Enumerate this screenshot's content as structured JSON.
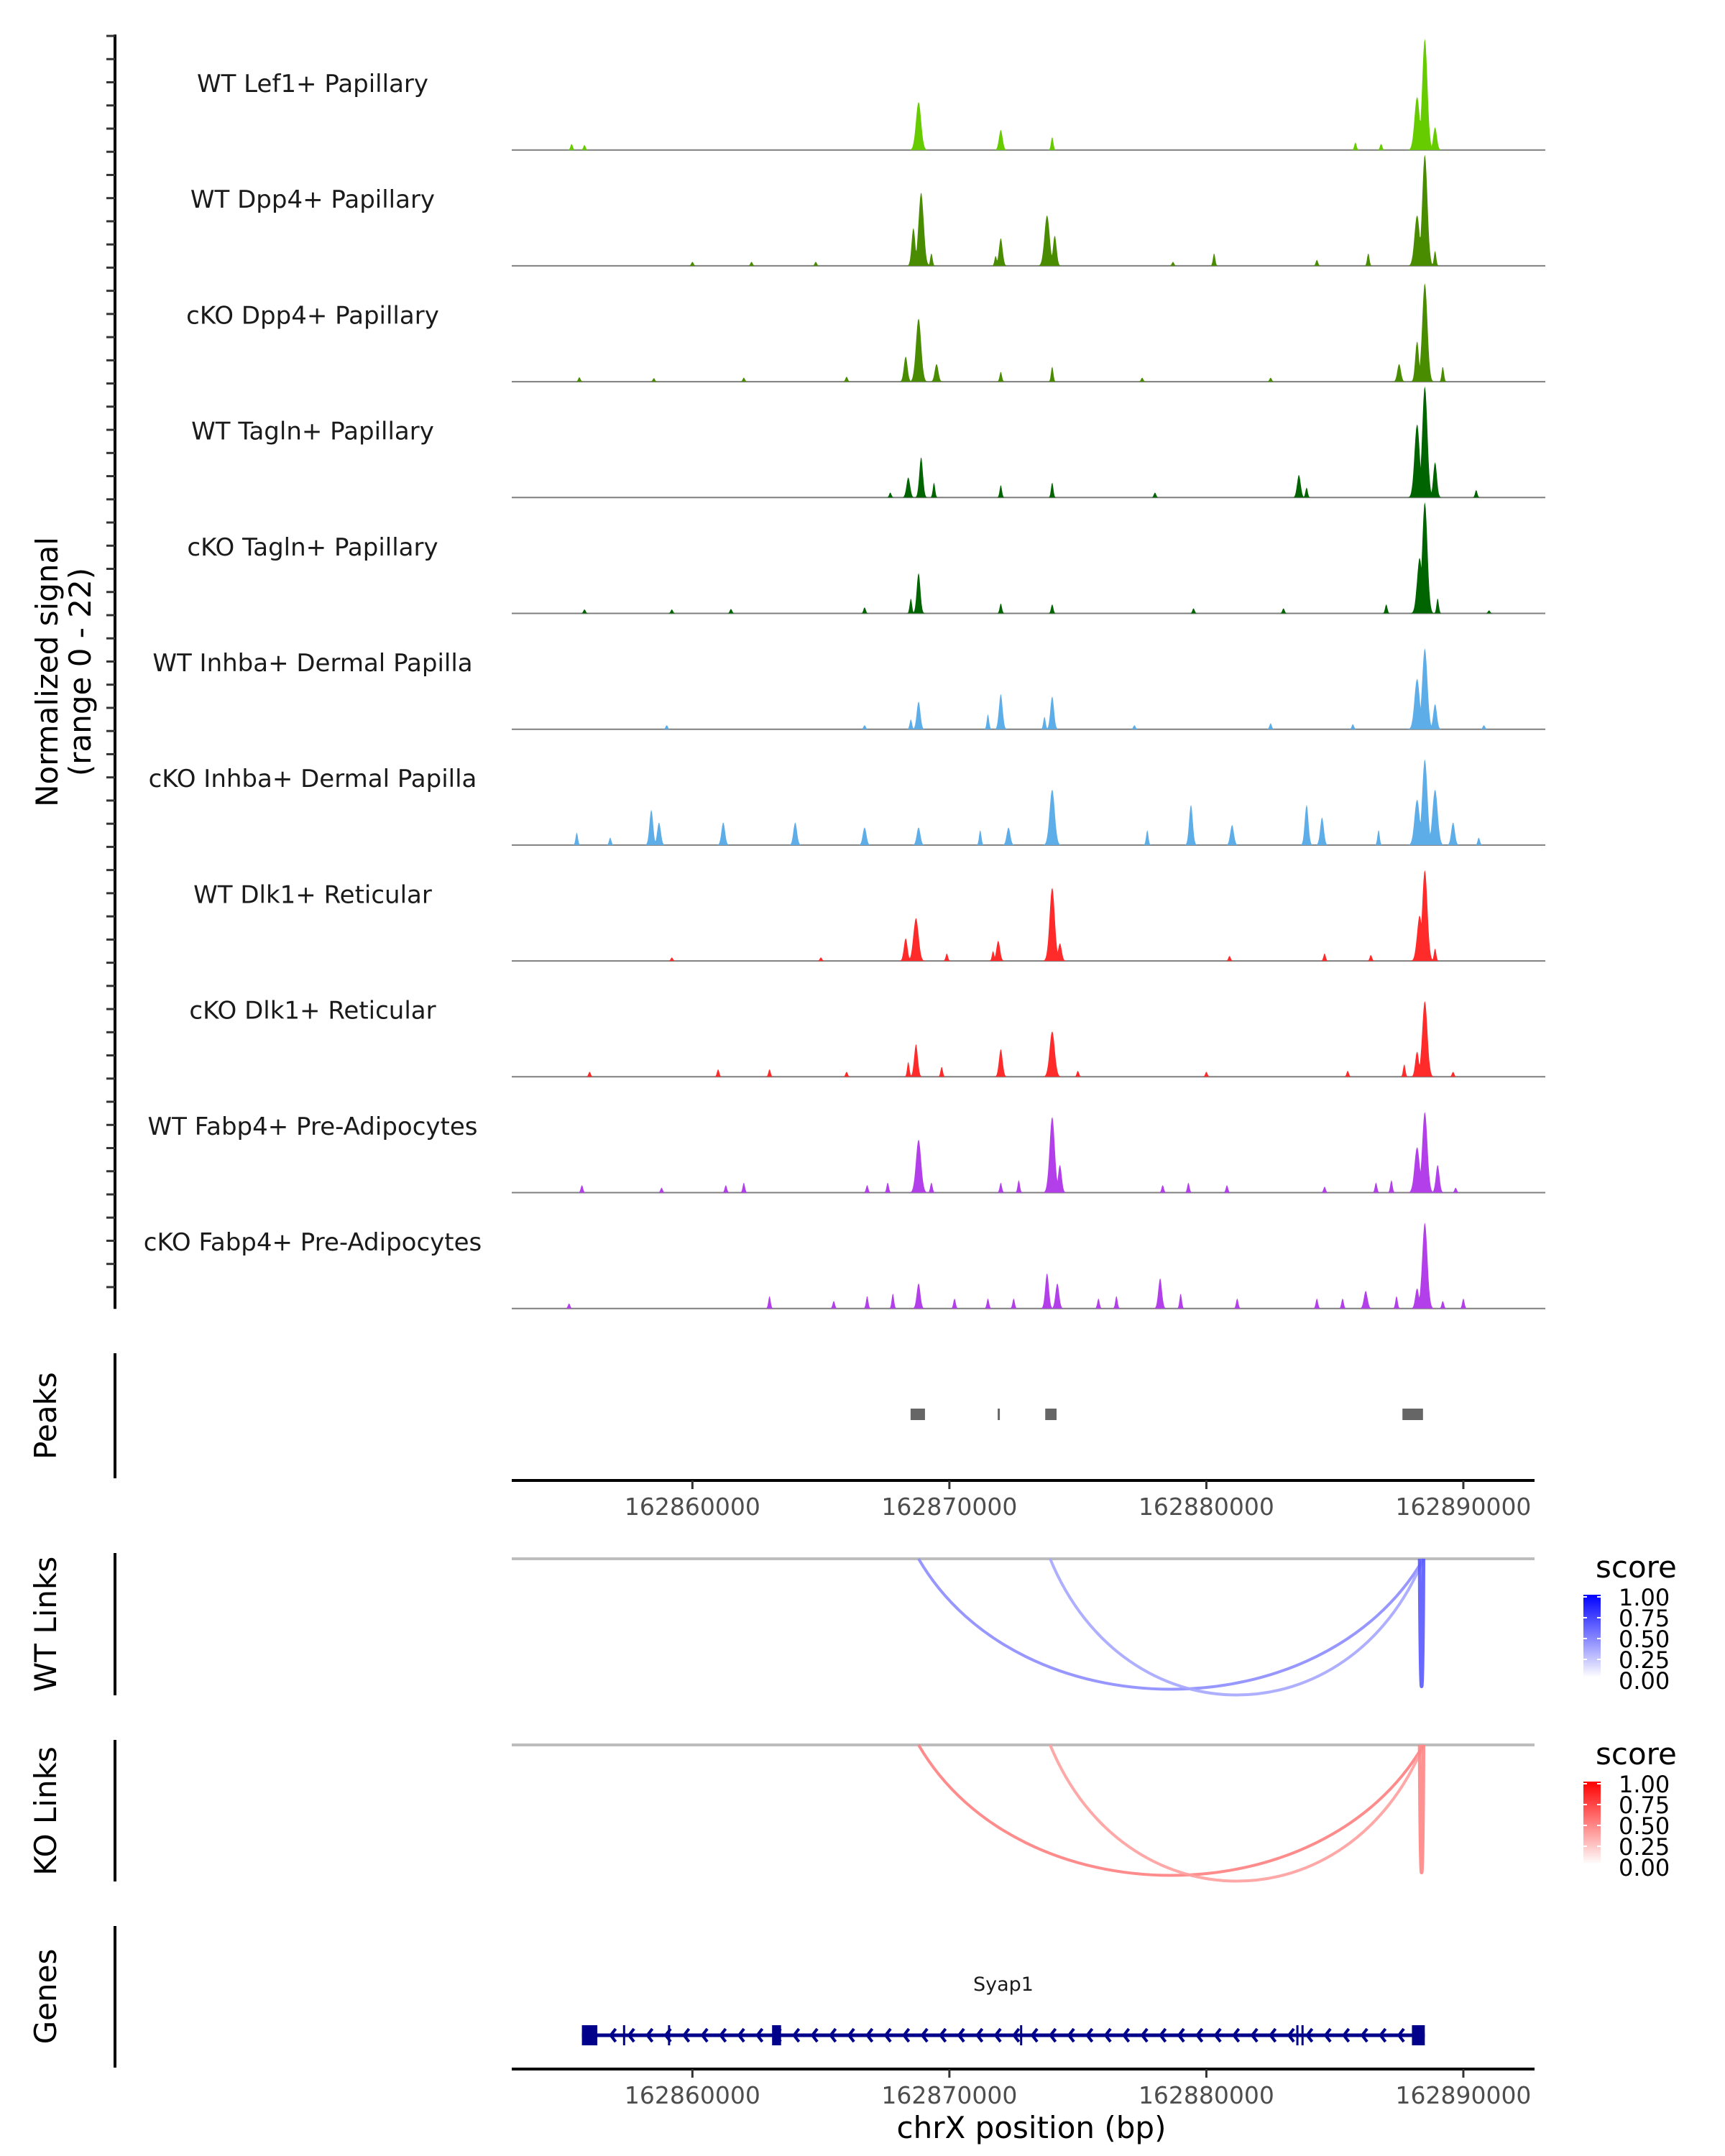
{
  "chart_data": {
    "type": "area",
    "title": "",
    "ylabel_signal": "Normalized signal\n(range 0 - 22)",
    "ylabel_lines": [
      "Normalized signal",
      "(range 0 - 22)"
    ],
    "signal_range": [
      0,
      22
    ],
    "xlabel": "chrX position (bp)",
    "xlim": [
      162852970,
      162892770
    ],
    "xticks": [
      162860000,
      162870000,
      162880000,
      162890000
    ],
    "xtick_labels": [
      "162860000",
      "162870000",
      "162880000",
      "162890000"
    ],
    "tracks": [
      {
        "name": "WT Lef1+ Papillary",
        "color": "#66CC00",
        "peaks": [
          [
            162855300,
            1.2
          ],
          [
            162855800,
            1.0
          ],
          [
            162868800,
            9.5
          ],
          [
            162872000,
            4.0
          ],
          [
            162874000,
            2.6
          ],
          [
            162888500,
            22.0
          ],
          [
            162888200,
            10.5
          ],
          [
            162888900,
            4.5
          ],
          [
            162885800,
            1.5
          ],
          [
            162886800,
            1.2
          ]
        ]
      },
      {
        "name": "WT Dpp4+ Papillary",
        "color": "#4A8C00",
        "peaks": [
          [
            162860000,
            0.8
          ],
          [
            162862300,
            0.8
          ],
          [
            162864800,
            0.8
          ],
          [
            162868900,
            14.5
          ],
          [
            162868600,
            7.5
          ],
          [
            162869300,
            2.5
          ],
          [
            162872000,
            5.5
          ],
          [
            162871800,
            2.0
          ],
          [
            162873800,
            10.0
          ],
          [
            162874100,
            6.0
          ],
          [
            162878700,
            0.8
          ],
          [
            162880300,
            2.5
          ],
          [
            162884300,
            1.2
          ],
          [
            162886300,
            2.5
          ],
          [
            162888200,
            10.0
          ],
          [
            162888500,
            22.0
          ],
          [
            162888900,
            3.0
          ]
        ]
      },
      {
        "name": "cKO Dpp4+ Papillary",
        "color": "#4A8C00",
        "peaks": [
          [
            162855600,
            0.9
          ],
          [
            162858500,
            0.7
          ],
          [
            162862000,
            0.8
          ],
          [
            162866000,
            1.0
          ],
          [
            162868800,
            12.5
          ],
          [
            162868300,
            5.0
          ],
          [
            162869500,
            3.5
          ],
          [
            162872000,
            2.0
          ],
          [
            162874000,
            3.0
          ],
          [
            162877500,
            0.8
          ],
          [
            162882500,
            0.8
          ],
          [
            162887500,
            3.5
          ],
          [
            162888500,
            19.5
          ],
          [
            162888200,
            8.0
          ],
          [
            162889200,
            3.0
          ]
        ]
      },
      {
        "name": "WT Tagln+ Papillary",
        "color": "#006400",
        "peaks": [
          [
            162867700,
            1.0
          ],
          [
            162868400,
            4.0
          ],
          [
            162868900,
            8.0
          ],
          [
            162869400,
            3.0
          ],
          [
            162872000,
            2.5
          ],
          [
            162874000,
            3.0
          ],
          [
            162878000,
            1.0
          ],
          [
            162883600,
            4.5
          ],
          [
            162883900,
            2.0
          ],
          [
            162888200,
            14.5
          ],
          [
            162888500,
            22.0
          ],
          [
            162888900,
            7.0
          ],
          [
            162890500,
            1.5
          ]
        ]
      },
      {
        "name": "cKO Tagln+ Papillary",
        "color": "#006400",
        "peaks": [
          [
            162855800,
            0.8
          ],
          [
            162859200,
            0.8
          ],
          [
            162861500,
            0.9
          ],
          [
            162866700,
            1.2
          ],
          [
            162868800,
            8.0
          ],
          [
            162868500,
            3.0
          ],
          [
            162872000,
            2.0
          ],
          [
            162874000,
            1.8
          ],
          [
            162879500,
            1.0
          ],
          [
            162883000,
            1.0
          ],
          [
            162887000,
            1.8
          ],
          [
            162888300,
            11.0
          ],
          [
            162888500,
            22.0
          ],
          [
            162889000,
            3.0
          ],
          [
            162891000,
            0.6
          ]
        ]
      },
      {
        "name": "WT Inhba+ Dermal Papilla",
        "color": "#5DADE9",
        "peaks": [
          [
            162859000,
            0.8
          ],
          [
            162866700,
            0.8
          ],
          [
            162868800,
            5.5
          ],
          [
            162868500,
            2.0
          ],
          [
            162872000,
            7.0
          ],
          [
            162871500,
            3.0
          ],
          [
            162874000,
            6.5
          ],
          [
            162873700,
            2.5
          ],
          [
            162877200,
            0.8
          ],
          [
            162882500,
            1.2
          ],
          [
            162885700,
            1.0
          ],
          [
            162888500,
            16.0
          ],
          [
            162888200,
            10.0
          ],
          [
            162888900,
            5.0
          ],
          [
            162890800,
            0.8
          ]
        ]
      },
      {
        "name": "cKO Inhba+ Dermal Papilla",
        "color": "#5DADE9",
        "peaks": [
          [
            162855500,
            2.5
          ],
          [
            162856800,
            1.5
          ],
          [
            162858400,
            7.0
          ],
          [
            162858700,
            4.5
          ],
          [
            162861200,
            4.5
          ],
          [
            162864000,
            4.5
          ],
          [
            162866700,
            3.5
          ],
          [
            162868800,
            3.5
          ],
          [
            162871200,
            3.0
          ],
          [
            162872300,
            3.5
          ],
          [
            162874000,
            11.0
          ],
          [
            162877700,
            3.0
          ],
          [
            162879400,
            8.0
          ],
          [
            162881000,
            4.0
          ],
          [
            162883900,
            8.0
          ],
          [
            162884500,
            5.5
          ],
          [
            162886700,
            3.0
          ],
          [
            162888200,
            9.0
          ],
          [
            162888500,
            17.0
          ],
          [
            162888900,
            11.0
          ],
          [
            162889600,
            4.5
          ],
          [
            162890600,
            1.5
          ]
        ]
      },
      {
        "name": "WT Dlk1+ Reticular",
        "color": "#FF2A2A",
        "peaks": [
          [
            162859200,
            0.7
          ],
          [
            162865000,
            0.7
          ],
          [
            162868700,
            8.5
          ],
          [
            162868300,
            4.5
          ],
          [
            162869900,
            1.5
          ],
          [
            162871900,
            4.0
          ],
          [
            162871700,
            2.0
          ],
          [
            162874000,
            14.5
          ],
          [
            162874300,
            3.5
          ],
          [
            162880900,
            1.0
          ],
          [
            162884600,
            1.5
          ],
          [
            162886400,
            1.2
          ],
          [
            162888300,
            9.0
          ],
          [
            162888500,
            18.0
          ],
          [
            162888900,
            2.5
          ]
        ]
      },
      {
        "name": "cKO Dlk1+ Reticular",
        "color": "#FF2A2A",
        "peaks": [
          [
            162856000,
            1.0
          ],
          [
            162861000,
            1.5
          ],
          [
            162863000,
            1.5
          ],
          [
            162866000,
            1.0
          ],
          [
            162868700,
            6.5
          ],
          [
            162868400,
            3.0
          ],
          [
            162869700,
            2.0
          ],
          [
            162872000,
            5.5
          ],
          [
            162874000,
            9.0
          ],
          [
            162875000,
            1.2
          ],
          [
            162880000,
            1.0
          ],
          [
            162885500,
            1.2
          ],
          [
            162887700,
            2.5
          ],
          [
            162888200,
            5.0
          ],
          [
            162888500,
            15.0
          ],
          [
            162889600,
            1.0
          ]
        ]
      },
      {
        "name": "WT Fabp4+ Pre-Adipocytes",
        "color": "#B23FEA",
        "peaks": [
          [
            162855700,
            1.5
          ],
          [
            162858800,
            1.0
          ],
          [
            162861300,
            1.5
          ],
          [
            162862000,
            2.0
          ],
          [
            162866800,
            1.5
          ],
          [
            162867600,
            2.0
          ],
          [
            162868800,
            10.5
          ],
          [
            162869300,
            2.0
          ],
          [
            162872000,
            2.0
          ],
          [
            162872700,
            2.5
          ],
          [
            162874000,
            15.0
          ],
          [
            162874300,
            5.5
          ],
          [
            162878300,
            1.5
          ],
          [
            162879300,
            2.0
          ],
          [
            162880800,
            1.5
          ],
          [
            162884600,
            1.2
          ],
          [
            162886600,
            2.0
          ],
          [
            162887200,
            2.5
          ],
          [
            162888200,
            9.0
          ],
          [
            162888500,
            16.0
          ],
          [
            162889000,
            5.5
          ],
          [
            162889700,
            1.0
          ]
        ]
      },
      {
        "name": "cKO Fabp4+ Pre-Adipocytes",
        "color": "#B23FEA",
        "peaks": [
          [
            162855200,
            1.0
          ],
          [
            162863000,
            2.5
          ],
          [
            162865500,
            1.5
          ],
          [
            162866800,
            2.5
          ],
          [
            162867800,
            3.0
          ],
          [
            162868800,
            5.0
          ],
          [
            162870200,
            2.0
          ],
          [
            162871500,
            2.0
          ],
          [
            162872500,
            2.0
          ],
          [
            162873800,
            7.0
          ],
          [
            162874200,
            5.0
          ],
          [
            162875800,
            2.0
          ],
          [
            162876500,
            2.5
          ],
          [
            162878200,
            6.0
          ],
          [
            162879000,
            3.0
          ],
          [
            162881200,
            2.0
          ],
          [
            162884300,
            2.0
          ],
          [
            162885300,
            2.0
          ],
          [
            162886200,
            3.5
          ],
          [
            162887400,
            2.5
          ],
          [
            162888200,
            4.0
          ],
          [
            162888500,
            17.0
          ],
          [
            162889200,
            1.5
          ],
          [
            162890000,
            2.0
          ]
        ]
      }
    ],
    "peaks_track": {
      "label": "Peaks",
      "color": "#666666",
      "regions": [
        [
          162868490,
          162869050
        ],
        [
          162871880,
          162871960
        ],
        [
          162873730,
          162874170
        ],
        [
          162887630,
          162888430
        ]
      ]
    },
    "links": [
      {
        "label": "WT Links",
        "legend_title": "score",
        "legend_ticks": [
          "1.00",
          "0.75",
          "0.50",
          "0.25",
          "0.00"
        ],
        "scale_low": "#FFFFFF",
        "scale_high": "#0000FF",
        "arcs": [
          {
            "start": 162868800,
            "end": 162888450,
            "score": 0.35
          },
          {
            "start": 162873920,
            "end": 162888450,
            "score": 0.25
          },
          {
            "start": 162888300,
            "end": 162888450,
            "score": 0.55
          }
        ]
      },
      {
        "label": "KO Links",
        "legend_title": "score",
        "legend_ticks": [
          "1.00",
          "0.75",
          "0.50",
          "0.25",
          "0.00"
        ],
        "scale_low": "#FFFFFF",
        "scale_high": "#FF0000",
        "arcs": [
          {
            "start": 162868800,
            "end": 162888450,
            "score": 0.4
          },
          {
            "start": 162873920,
            "end": 162888450,
            "score": 0.28
          },
          {
            "start": 162888300,
            "end": 162888450,
            "score": 0.38
          }
        ]
      }
    ],
    "genes_track": {
      "label": "Genes",
      "color": "#00008B",
      "gene": {
        "name": "Syap1",
        "start": 162855700,
        "end": 162888500,
        "strand": "-",
        "exons": [
          [
            162855700,
            162856300
          ],
          [
            162857300,
            162857380
          ],
          [
            162859050,
            162859090
          ],
          [
            162863100,
            162863450
          ],
          [
            162872750,
            162872820
          ],
          [
            162883500,
            162883560
          ],
          [
            162883700,
            162883760
          ],
          [
            162888000,
            162888500
          ]
        ]
      }
    }
  }
}
